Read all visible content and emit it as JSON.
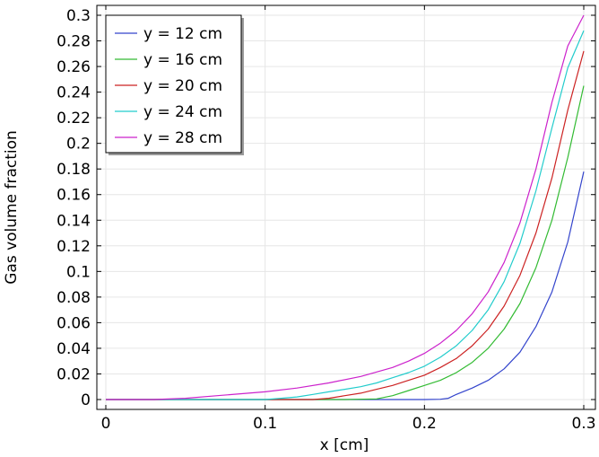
{
  "chart_data": {
    "type": "line",
    "xlabel": "x [cm]",
    "ylabel": "Gas volume fraction",
    "xlim": [
      0,
      0.3
    ],
    "ylim": [
      0,
      0.3
    ],
    "xticks": [
      "0",
      "0.1",
      "0.2",
      "0.3"
    ],
    "yticks": [
      "0",
      "0.02",
      "0.04",
      "0.06",
      "0.08",
      "0.1",
      "0.12",
      "0.14",
      "0.16",
      "0.18",
      "0.2",
      "0.22",
      "0.24",
      "0.26",
      "0.28",
      "0.3"
    ],
    "grid": true,
    "legend_position": "top-left",
    "series": [
      {
        "name": "y = 12 cm",
        "color": "#3344cc",
        "x": [
          0,
          0.05,
          0.1,
          0.15,
          0.2,
          0.21,
          0.215,
          0.22,
          0.23,
          0.24,
          0.25,
          0.26,
          0.27,
          0.28,
          0.29,
          0.3
        ],
        "y": [
          0,
          0,
          0,
          0,
          0,
          0.0002,
          0.001,
          0.004,
          0.009,
          0.015,
          0.024,
          0.037,
          0.057,
          0.084,
          0.123,
          0.178
        ]
      },
      {
        "name": "y = 16 cm",
        "color": "#33bb33",
        "x": [
          0,
          0.05,
          0.1,
          0.15,
          0.17,
          0.18,
          0.19,
          0.2,
          0.21,
          0.22,
          0.23,
          0.24,
          0.25,
          0.26,
          0.27,
          0.28,
          0.29,
          0.3
        ],
        "y": [
          0,
          0,
          0,
          0,
          0.0005,
          0.003,
          0.007,
          0.011,
          0.015,
          0.021,
          0.029,
          0.04,
          0.055,
          0.075,
          0.103,
          0.14,
          0.189,
          0.245
        ]
      },
      {
        "name": "y = 20 cm",
        "color": "#cc2222",
        "x": [
          0,
          0.05,
          0.1,
          0.13,
          0.14,
          0.15,
          0.16,
          0.17,
          0.18,
          0.19,
          0.2,
          0.21,
          0.22,
          0.23,
          0.24,
          0.25,
          0.26,
          0.27,
          0.28,
          0.29,
          0.3
        ],
        "y": [
          0,
          0,
          0,
          0,
          0.001,
          0.003,
          0.005,
          0.008,
          0.011,
          0.015,
          0.019,
          0.025,
          0.032,
          0.042,
          0.055,
          0.073,
          0.097,
          0.13,
          0.173,
          0.226,
          0.272
        ]
      },
      {
        "name": "y = 24 cm",
        "color": "#22cccc",
        "x": [
          0,
          0.05,
          0.1,
          0.11,
          0.12,
          0.13,
          0.14,
          0.15,
          0.16,
          0.17,
          0.18,
          0.19,
          0.2,
          0.21,
          0.22,
          0.23,
          0.24,
          0.25,
          0.26,
          0.27,
          0.28,
          0.29,
          0.3
        ],
        "y": [
          0,
          0,
          0,
          0.001,
          0.002,
          0.004,
          0.006,
          0.008,
          0.01,
          0.013,
          0.017,
          0.021,
          0.026,
          0.033,
          0.042,
          0.054,
          0.07,
          0.092,
          0.122,
          0.163,
          0.212,
          0.259,
          0.288
        ]
      },
      {
        "name": "y = 28 cm",
        "color": "#cc22cc",
        "x": [
          0,
          0.03,
          0.05,
          0.07,
          0.1,
          0.12,
          0.14,
          0.16,
          0.18,
          0.19,
          0.2,
          0.21,
          0.22,
          0.23,
          0.24,
          0.25,
          0.26,
          0.27,
          0.28,
          0.29,
          0.3
        ],
        "y": [
          0,
          0,
          0.001,
          0.003,
          0.006,
          0.009,
          0.013,
          0.018,
          0.025,
          0.03,
          0.036,
          0.044,
          0.054,
          0.067,
          0.084,
          0.107,
          0.138,
          0.18,
          0.232,
          0.276,
          0.3
        ]
      }
    ]
  }
}
